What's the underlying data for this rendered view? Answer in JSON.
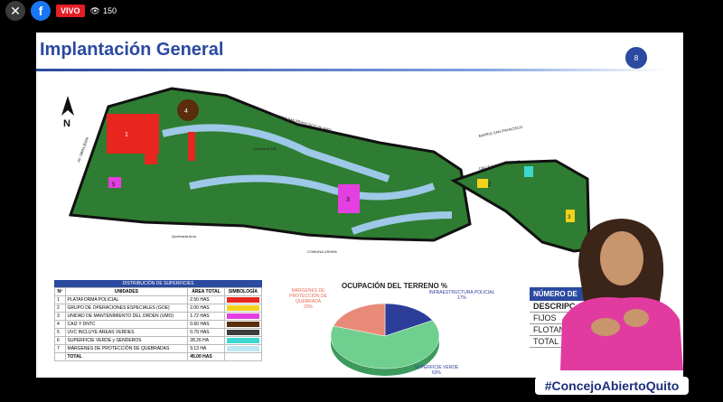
{
  "stream": {
    "close_icon": "close-icon",
    "facebook_icon": "facebook-icon",
    "live_badge": "VIVO",
    "viewers_count": "150"
  },
  "slide": {
    "title": "Implantación General",
    "page_number": "8",
    "compass_label": "N",
    "map_labels": {
      "comuna_sf_pifo": "COMUNA SAN FRANCISCO DE PIFO",
      "barrio_sf": "BARRIO SAN FRANCISCO",
      "calle_sf": "CALLE SAN FRANCISCO",
      "comuna_ushimi": "COMUNA USHIMI",
      "quebrada": "Quebrada S/N",
      "quebrada_ama": "Quebrada Ama",
      "obrajeria": "AV. OBRAJERÍA"
    },
    "lot_numbers": [
      "1",
      "2",
      "3",
      "4",
      "5",
      "6",
      "2",
      "3",
      "2"
    ]
  },
  "distribution_table": {
    "title": "DISTRIBUCIÓN DE SUPERFICIES",
    "headers": [
      "Nº",
      "UNIDADES",
      "ÁREA TOTAL",
      "SIMBOLOGÍA"
    ],
    "rows": [
      {
        "n": "1",
        "unit": "PLATAFORMA POLICIAL",
        "area": "2.50 HAS",
        "color": "#e8251f"
      },
      {
        "n": "2",
        "unit": "GRUPO DE OPERACIONES ESPECIALES (GOE)",
        "area": "2.00 HAS",
        "color": "#f3d21c"
      },
      {
        "n": "3",
        "unit": "UNIDAD DE MANTENIMIENTO DEL ORDEN (UMO)",
        "area": "1.72 HAS",
        "color": "#e43fe0"
      },
      {
        "n": "4",
        "unit": "CAI2 Y DNTC",
        "area": "0.60 HAS",
        "color": "#5a2d0c"
      },
      {
        "n": "5",
        "unit": "UVC INCLUYE ÁREAS VERDES",
        "area": "0.79 HAS",
        "color": "#3c3c3c"
      },
      {
        "n": "6",
        "unit": "SUPERFICIE VERDE y SENDEROS",
        "area": "28.26 HA",
        "color": "#3dd6d0"
      },
      {
        "n": "7",
        "unit": "MÁRGENES DE PROTECCIÓN DE QUEBRADAS",
        "area": "9.13 HA",
        "color": "#bde7f5"
      }
    ],
    "total_label": "TOTAL",
    "total_area": "45.00 HAS"
  },
  "chart_data": {
    "type": "pie",
    "title": "OCUPACIÓN DEL TERRENO %",
    "slices": [
      {
        "label": "INFRAESTRUCTURA POLICIAL",
        "value": 17,
        "display": "17%",
        "color": "#2c3e99"
      },
      {
        "label": "SUPERFICIE VERDE",
        "value": 63,
        "display": "63%",
        "color": "#6fcf8f"
      },
      {
        "label": "MARGENES DE PROTECCIÓN DE QUEBRADA",
        "value": 20,
        "display": "20%",
        "color": "#e88a78"
      }
    ]
  },
  "side_box": {
    "header": "NÚMERO DE",
    "rows": [
      "DESCRIPC",
      "FIJOS",
      "FLOTAN",
      "TOTAL"
    ]
  },
  "footer": {
    "hashtag": "#ConcejoAbiertoQuito"
  }
}
